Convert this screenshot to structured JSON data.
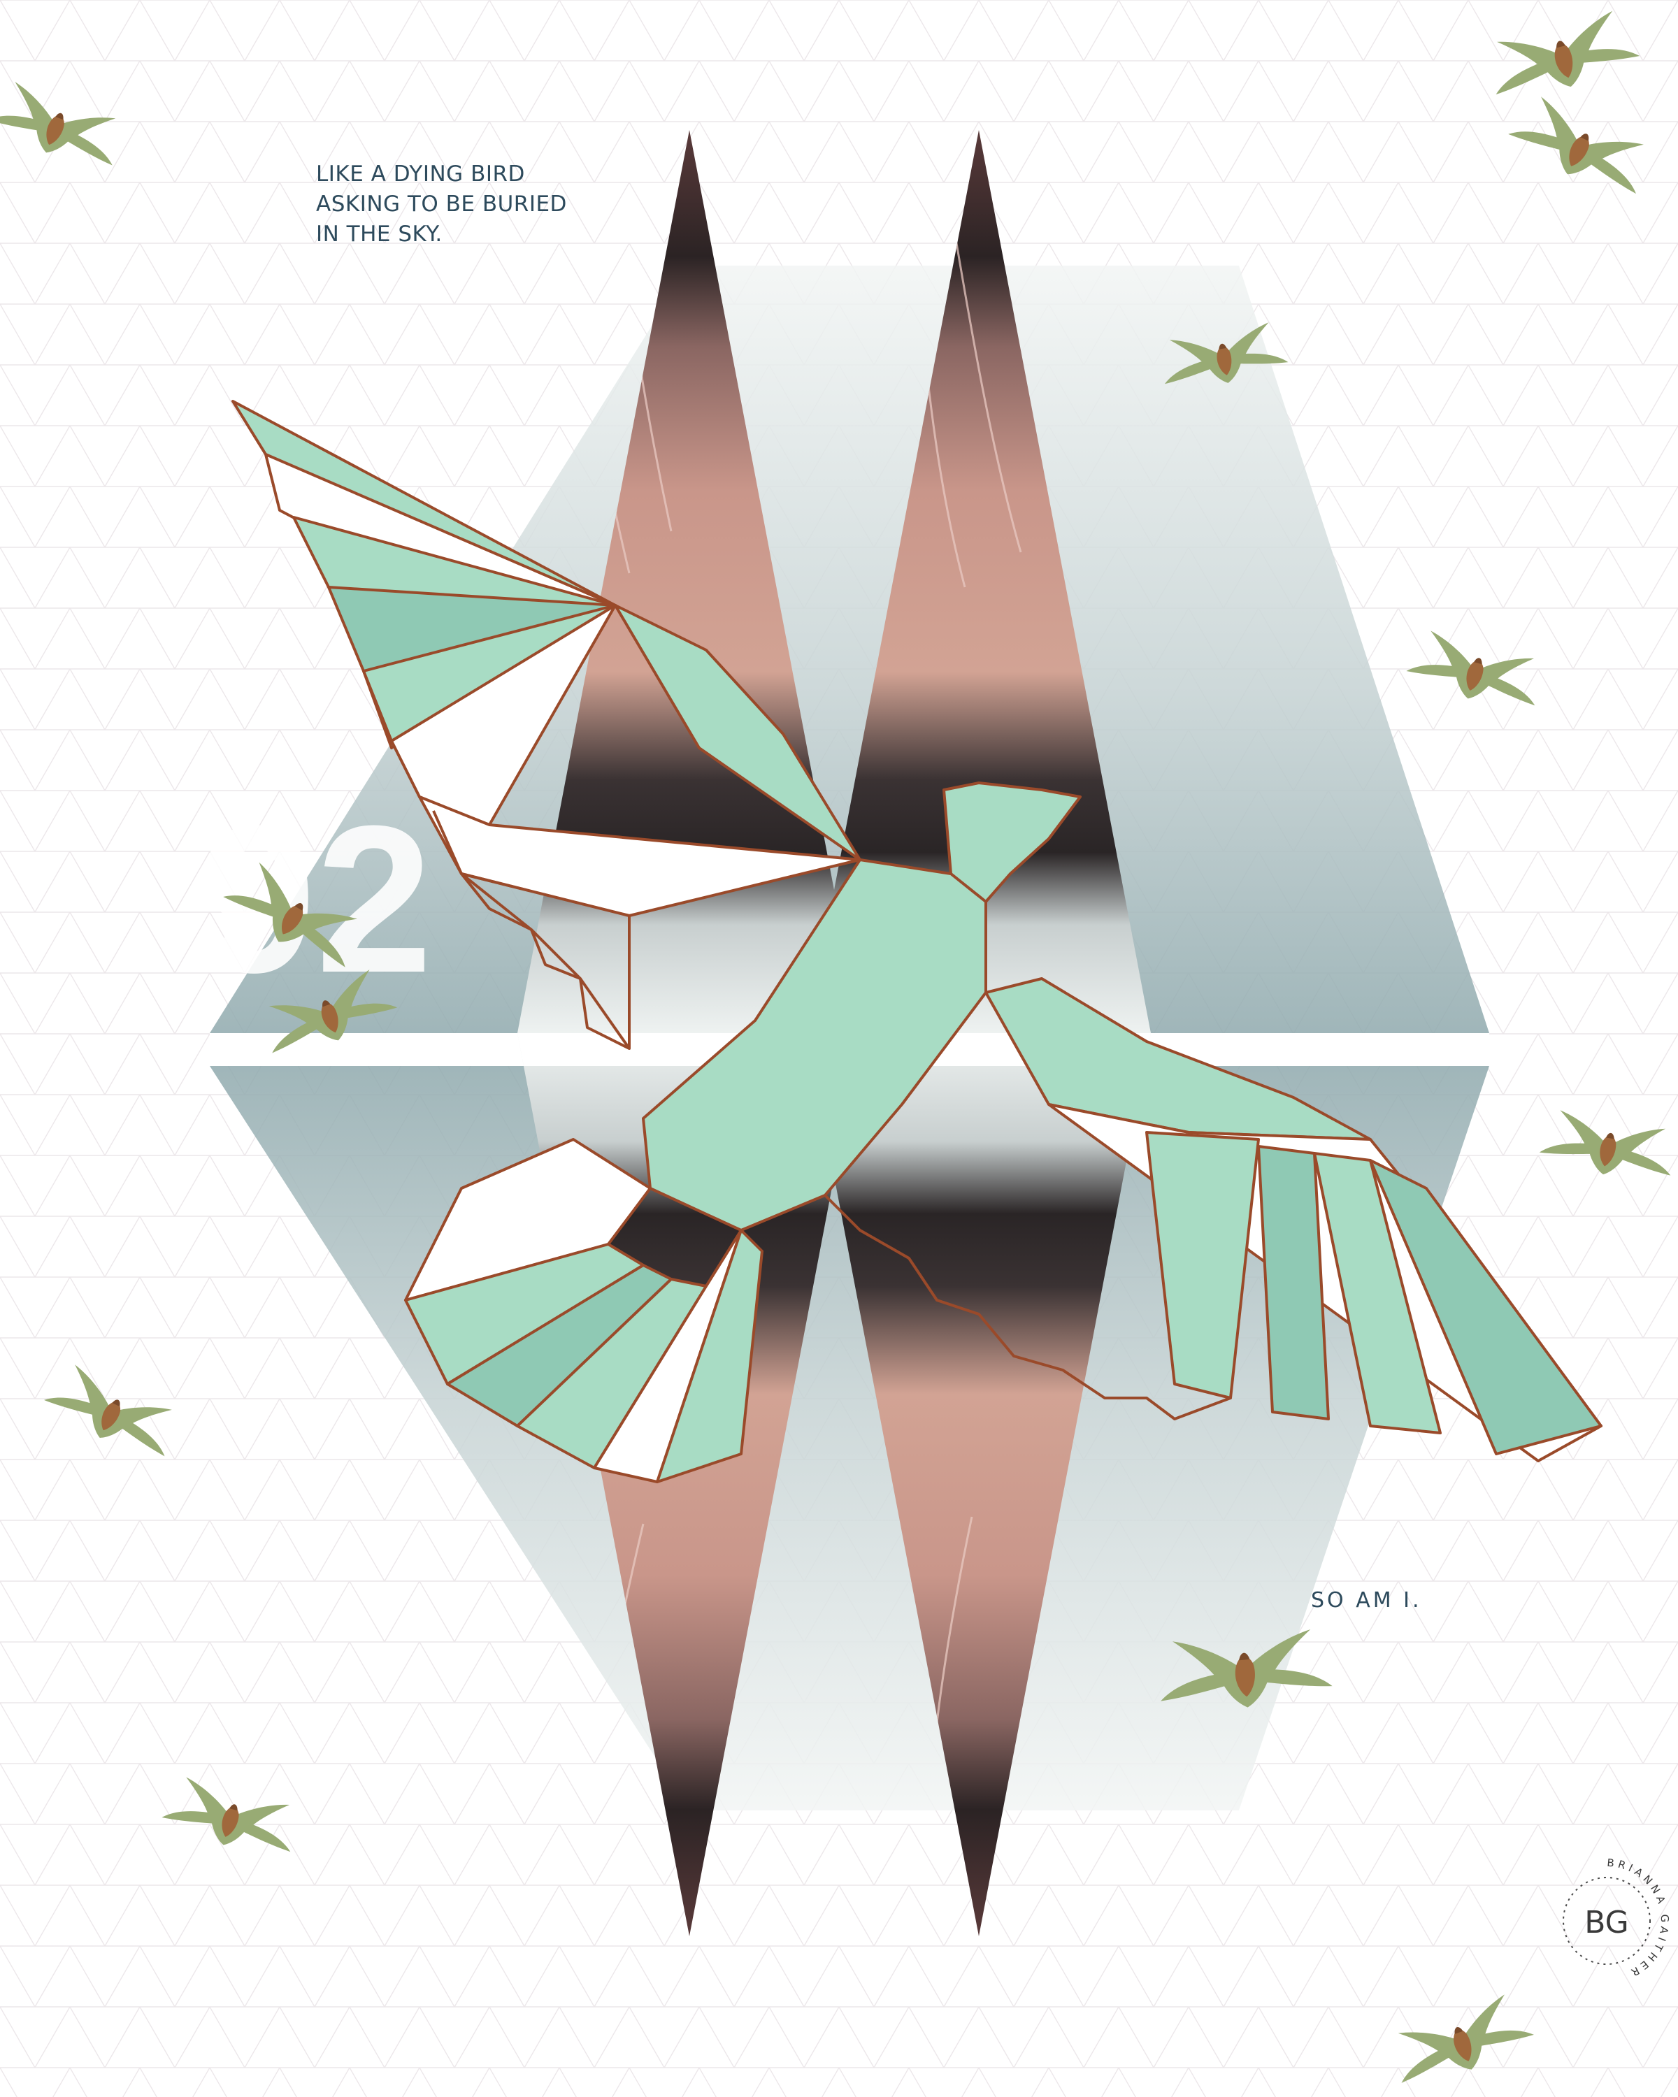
{
  "poem": {
    "line1": "LIKE A DYING BIRD",
    "line2": "ASKING TO BE BURIED",
    "line3": "IN THE SKY.",
    "closing": "SO AM I."
  },
  "signature": {
    "initials": "BG",
    "ring_text": "BRIANNA GAITHER"
  },
  "overlay_text": "92",
  "colors": {
    "background": "#ffffff",
    "mint": "#a8dcc4",
    "mint_dark": "#7fb9a6",
    "outline": "#9a4a2a",
    "dusty_rose": "#c9968a",
    "charcoal": "#2a2526",
    "fog": "#dfe7e6",
    "teal_grey": "#8fa9ad",
    "text": "#2d4a5c",
    "silhouette_bird": "#8fa06c"
  },
  "icons": [
    "flying-bird-silhouette",
    "geometric-bird-outline",
    "triangle-grid-pattern"
  ]
}
